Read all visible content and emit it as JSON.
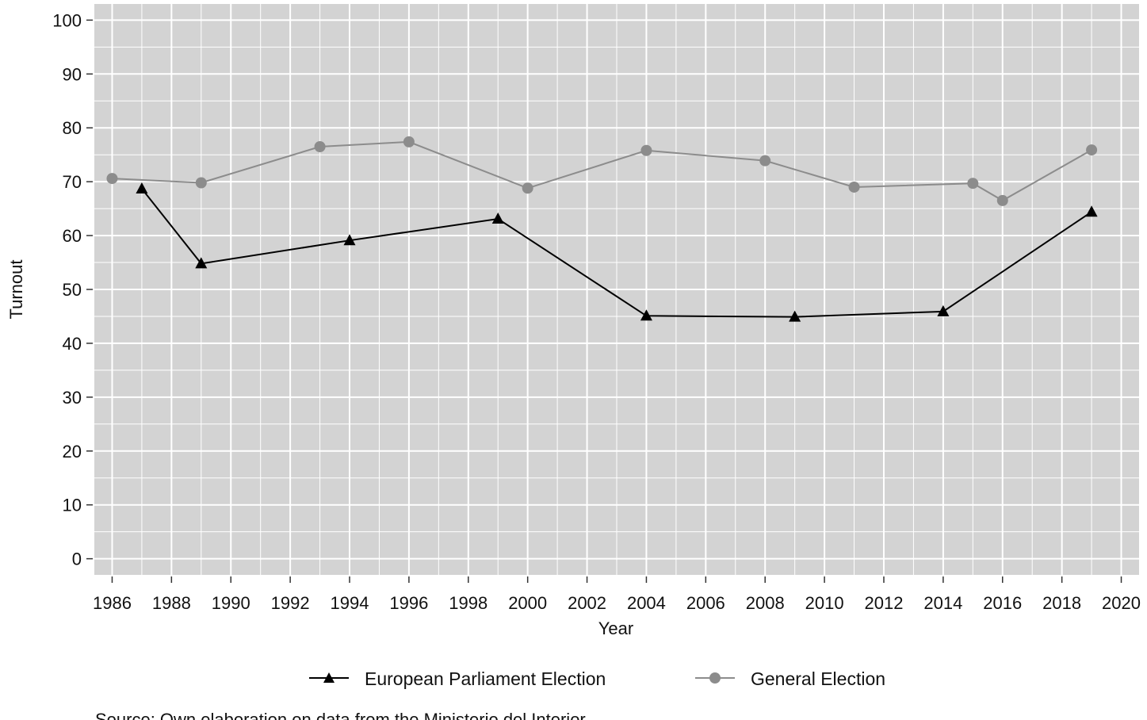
{
  "chart_data": {
    "type": "line",
    "xlabel": "Year",
    "ylabel": "Turnout",
    "xlim": [
      1985.4,
      2020.6
    ],
    "ylim": [
      -3,
      103
    ],
    "x_ticks": [
      1986,
      1988,
      1990,
      1992,
      1994,
      1996,
      1998,
      2000,
      2002,
      2004,
      2006,
      2008,
      2010,
      2012,
      2014,
      2016,
      2018,
      2020
    ],
    "y_ticks": [
      0,
      10,
      20,
      30,
      40,
      50,
      60,
      70,
      80,
      90,
      100
    ],
    "grid": true,
    "legend_position": "bottom",
    "background_color": "#d3d3d3",
    "grid_color": "#ffffff",
    "series": [
      {
        "name": "European Parliament Election",
        "color": "#000000",
        "marker": "triangle",
        "x": [
          1987,
          1989,
          1994,
          1999,
          2004,
          2009,
          2014,
          2019
        ],
        "y": [
          68.7,
          54.8,
          59.1,
          63.1,
          45.1,
          44.9,
          45.9,
          64.4
        ]
      },
      {
        "name": "General Election",
        "color": "#8c8c8c",
        "marker": "circle",
        "x": [
          1986,
          1989,
          1993,
          1996,
          2000,
          2004,
          2008,
          2011,
          2015,
          2016,
          2019
        ],
        "y": [
          70.6,
          69.8,
          76.5,
          77.4,
          68.8,
          75.8,
          73.9,
          69.0,
          69.7,
          66.5,
          75.9
        ]
      }
    ]
  },
  "source_note": "Source: Own elaboration on data from the Ministerio del Interior"
}
